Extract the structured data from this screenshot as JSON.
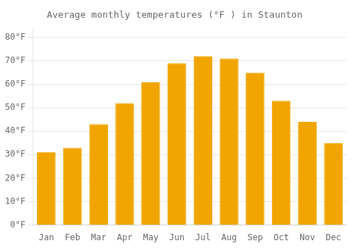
{
  "chart_data": {
    "type": "bar",
    "title": "Average monthly temperatures (°F ) in Staunton",
    "categories": [
      "Jan",
      "Feb",
      "Mar",
      "Apr",
      "May",
      "Jun",
      "Jul",
      "Aug",
      "Sep",
      "Oct",
      "Nov",
      "Dec"
    ],
    "values": [
      31,
      33,
      43,
      52,
      61,
      69,
      72,
      71,
      65,
      53,
      44,
      35
    ],
    "color": "#F0A500",
    "ylim": [
      0,
      84
    ],
    "yticks": [
      {
        "value": 0,
        "label": "0°F"
      },
      {
        "value": 10,
        "label": "10°F"
      },
      {
        "value": 20,
        "label": "20°F"
      },
      {
        "value": 30,
        "label": "30°F"
      },
      {
        "value": 40,
        "label": "40°F"
      },
      {
        "value": 50,
        "label": "50°F"
      },
      {
        "value": 60,
        "label": "60°F"
      },
      {
        "value": 70,
        "label": "70°F"
      },
      {
        "value": 80,
        "label": "80°F"
      }
    ],
    "grid": true
  }
}
